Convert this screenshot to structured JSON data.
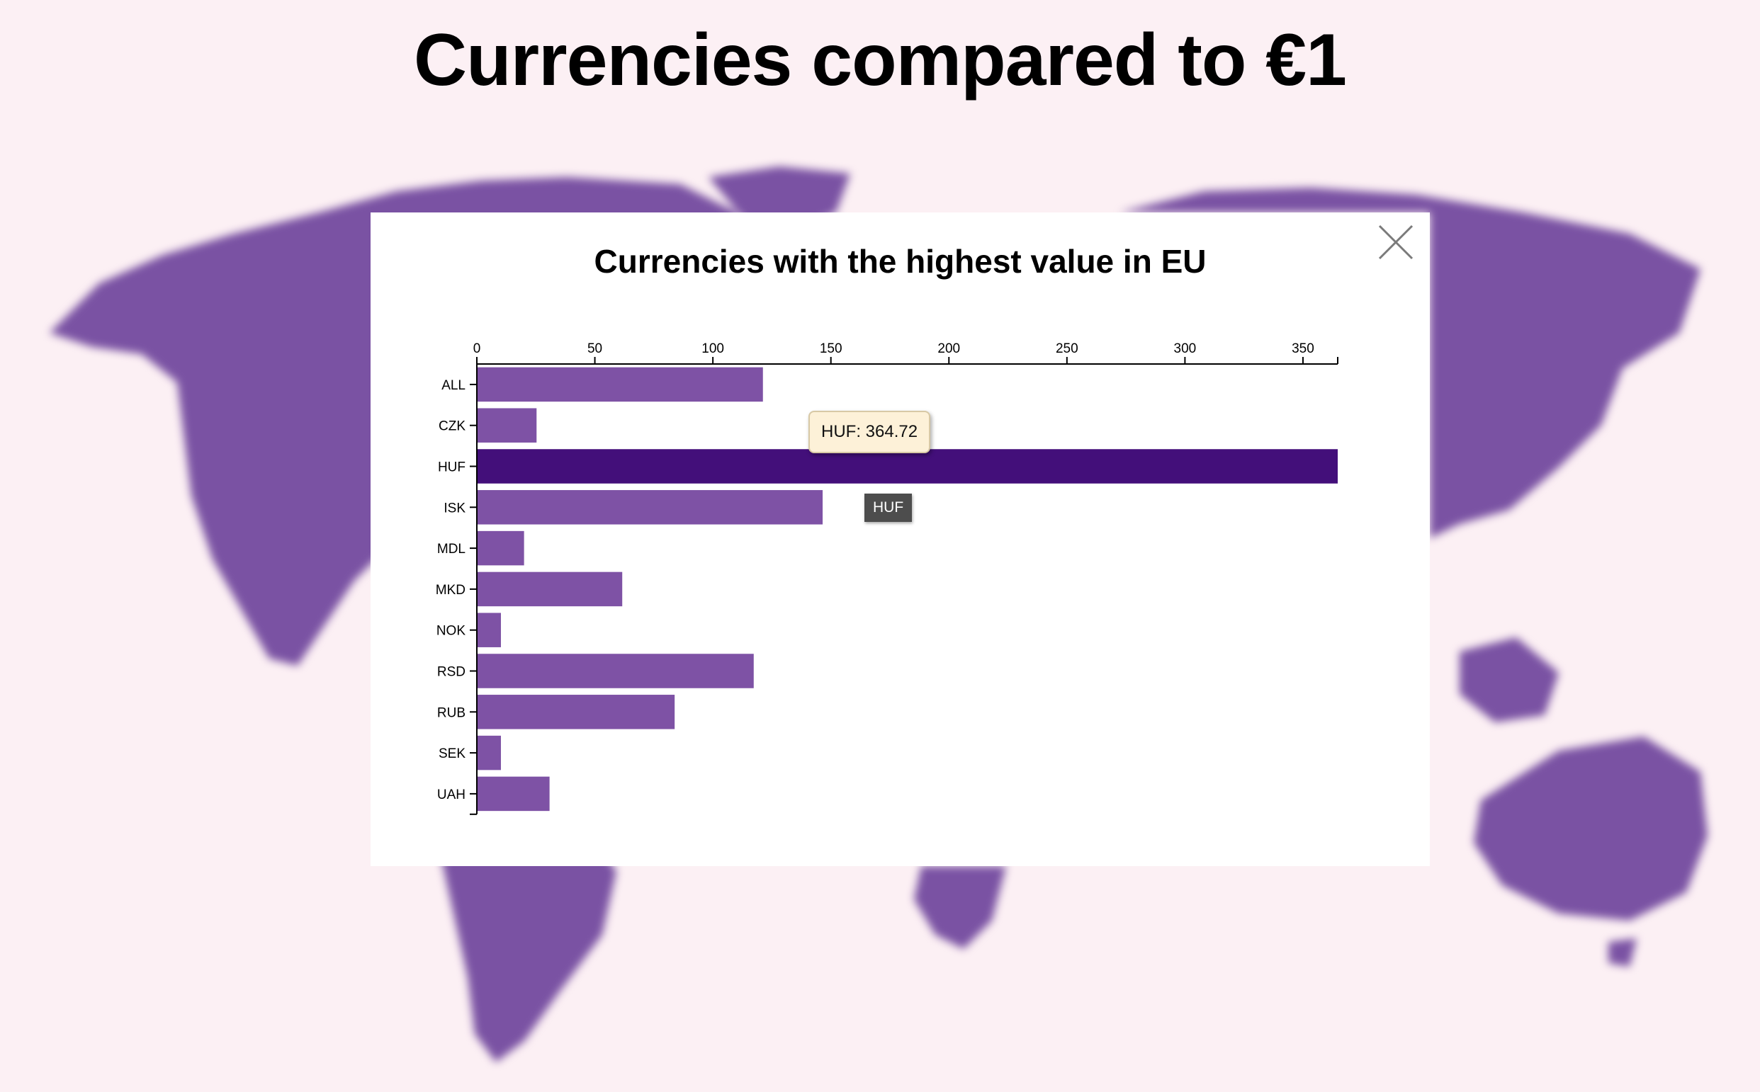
{
  "page": {
    "title": "Currencies compared to €1"
  },
  "colors": {
    "background": "#fcf0f4",
    "map": "#7a52a3",
    "bar": "#7e52a5",
    "bar_highlight": "#430f7a"
  },
  "modal": {
    "close_icon": "close-icon"
  },
  "tooltip": {
    "value_text": "HUF: 364.72",
    "name_text": "HUF"
  },
  "chart_data": {
    "type": "bar",
    "orientation": "horizontal",
    "title": "Currencies with the highest value in EU",
    "categories": [
      "ALL",
      "CZK",
      "HUF",
      "ISK",
      "MDL",
      "MKD",
      "NOK",
      "RSD",
      "RUB",
      "SEK",
      "UAH"
    ],
    "values": [
      121.2,
      25.3,
      364.72,
      146.5,
      20,
      61.6,
      10.2,
      117.3,
      83.8,
      10.2,
      30.8
    ],
    "highlighted": "HUF",
    "xlim": [
      0,
      364.72
    ],
    "xticks": [
      0,
      50,
      100,
      150,
      200,
      250,
      300,
      350
    ],
    "x_axis_position": "top",
    "grid": false,
    "xlabel": "",
    "ylabel": ""
  }
}
